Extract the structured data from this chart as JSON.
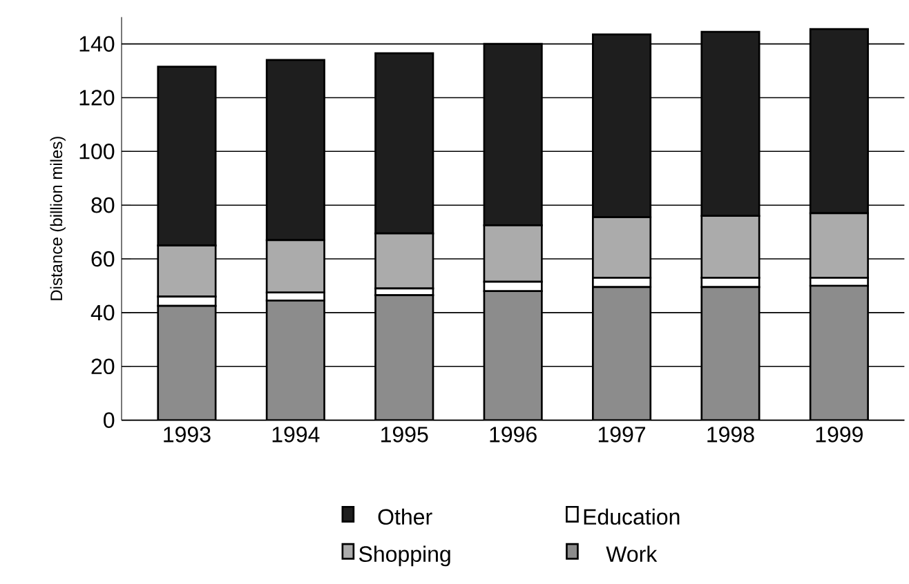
{
  "chart_data": {
    "type": "bar",
    "stacked": true,
    "ylabel": "Distance (billion miles)",
    "categories": [
      "1993",
      "1994",
      "1995",
      "1996",
      "1997",
      "1998",
      "1999"
    ],
    "series": [
      {
        "name": "Work",
        "color": "#8c8c8c",
        "values": [
          42.5,
          44.5,
          46.5,
          48,
          49.5,
          49.5,
          50
        ]
      },
      {
        "name": "Education",
        "color": "#ffffff",
        "values": [
          3.5,
          3,
          2.5,
          3.5,
          3.5,
          3.5,
          3
        ]
      },
      {
        "name": "Shopping",
        "color": "#ababab",
        "values": [
          19,
          19.5,
          20.5,
          21,
          22.5,
          23,
          24
        ]
      },
      {
        "name": "Other",
        "color": "#1e1e1e",
        "values": [
          66.5,
          67,
          67,
          67.5,
          68,
          68.5,
          68.5
        ]
      }
    ],
    "ylim": [
      0,
      150
    ],
    "yticks": [
      0,
      20,
      40,
      60,
      80,
      100,
      120,
      140
    ],
    "grid": "y",
    "legend": "bottom"
  }
}
